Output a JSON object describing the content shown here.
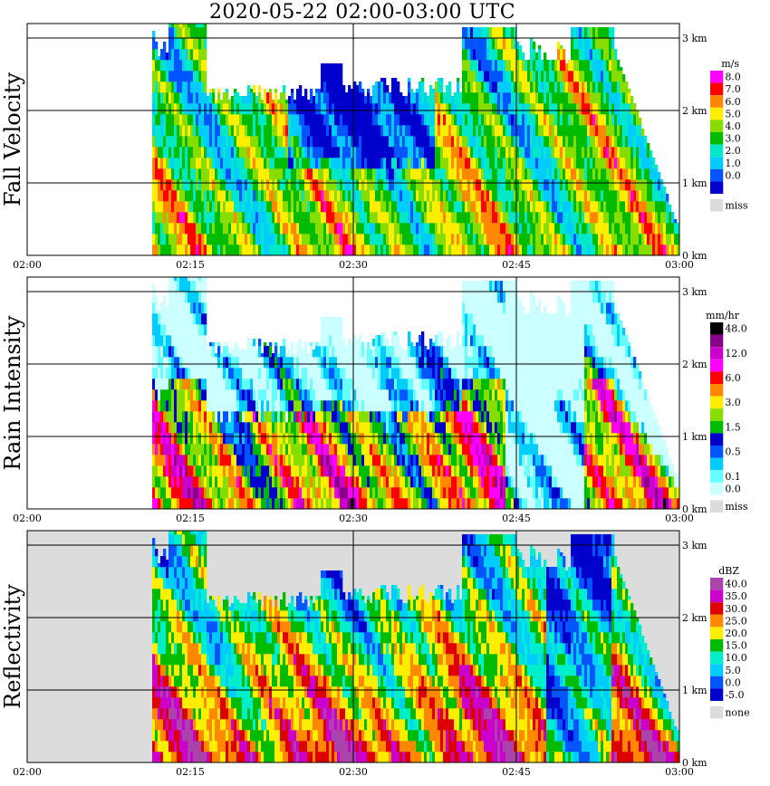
{
  "title": "2020-05-22   02:00-03:00 UTC",
  "chart_data": [
    {
      "type": "heatmap",
      "name": "Fall Velocity",
      "ylabel": "Fall Velocity",
      "xticks": [
        "02:00",
        "02:15",
        "02:30",
        "02:45",
        "03:00"
      ],
      "yticks": [
        "0 km",
        "1 km",
        "2 km",
        "3 km"
      ],
      "ylim_km": [
        0,
        3.2
      ],
      "legend_unit": "m/s",
      "legend": [
        {
          "label": "8.0",
          "color": "#ff00ff"
        },
        {
          "label": "7.0",
          "color": "#ff0000"
        },
        {
          "label": "6.0",
          "color": "#ff8800"
        },
        {
          "label": "5.0",
          "color": "#ffee00"
        },
        {
          "label": "4.0",
          "color": "#88dd00"
        },
        {
          "label": "3.0",
          "color": "#00bb00"
        },
        {
          "label": "2.0",
          "color": "#00e8c8"
        },
        {
          "label": "1.0",
          "color": "#00ccff"
        },
        {
          "label": "0.0",
          "color": "#0055ff"
        },
        {
          "label": "",
          "color": "#0000cc"
        },
        {
          "label": "miss",
          "color": "#dcdcdc"
        }
      ]
    },
    {
      "type": "heatmap",
      "name": "Rain Intensity",
      "ylabel": "Rain Intensity",
      "xticks": [
        "02:00",
        "02:15",
        "02:30",
        "02:45",
        "03:00"
      ],
      "yticks": [
        "0 km",
        "1 km",
        "2 km",
        "3 km"
      ],
      "ylim_km": [
        0,
        3.2
      ],
      "legend_unit": "mm/hr",
      "legend": [
        {
          "label": "48.0",
          "color": "#000000"
        },
        {
          "label": "",
          "color": "#880088"
        },
        {
          "label": "12.0",
          "color": "#cc00cc"
        },
        {
          "label": "",
          "color": "#ff00ff"
        },
        {
          "label": "6.0",
          "color": "#ff0000"
        },
        {
          "label": "",
          "color": "#ff8800"
        },
        {
          "label": "3.0",
          "color": "#ffee00"
        },
        {
          "label": "",
          "color": "#88dd00"
        },
        {
          "label": "1.5",
          "color": "#00bb00"
        },
        {
          "label": "",
          "color": "#0000cc"
        },
        {
          "label": "0.5",
          "color": "#0055ff"
        },
        {
          "label": "",
          "color": "#00ccff"
        },
        {
          "label": "0.1",
          "color": "#66ffff"
        },
        {
          "label": "0.0",
          "color": "#ccffff"
        },
        {
          "label": "miss",
          "color": "#dcdcdc"
        }
      ]
    },
    {
      "type": "heatmap",
      "name": "Reflectivity",
      "ylabel": "Reflectivity",
      "xticks": [
        "02:00",
        "02:15",
        "02:30",
        "02:45",
        "03:00"
      ],
      "yticks": [
        "0 km",
        "1 km",
        "2 km",
        "3 km"
      ],
      "ylim_km": [
        0,
        3.2
      ],
      "legend_unit": "dBZ",
      "legend": [
        {
          "label": "40.0",
          "color": "#aa44aa"
        },
        {
          "label": "35.0",
          "color": "#cc00cc"
        },
        {
          "label": "30.0",
          "color": "#dd0000"
        },
        {
          "label": "25.0",
          "color": "#ff8800"
        },
        {
          "label": "20.0",
          "color": "#ffee00"
        },
        {
          "label": "15.0",
          "color": "#00bb00"
        },
        {
          "label": "10.0",
          "color": "#00eecc"
        },
        {
          "label": "5.0",
          "color": "#00ccff"
        },
        {
          "label": "0.0",
          "color": "#0055ff"
        },
        {
          "label": "-5.0",
          "color": "#0000cc"
        },
        {
          "label": "none",
          "color": "#dcdcdc"
        }
      ]
    }
  ]
}
